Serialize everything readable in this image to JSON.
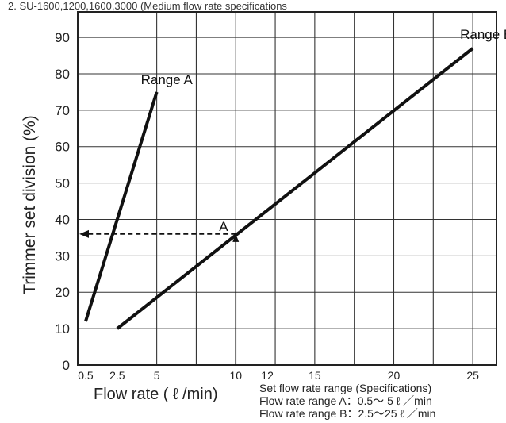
{
  "header_text": "2. SU-1600,1200,1600,3000 (Medium flow rate specifications",
  "chart_data": {
    "type": "line",
    "title": "",
    "xlabel": "Flow rate ( ℓ /min)",
    "ylabel": "Trimmer set division (%)",
    "x_ticks": [
      "0.5",
      "2.5",
      "5",
      "10",
      "12",
      "15",
      "20",
      "25"
    ],
    "y_ticks": [
      "0",
      "10",
      "20",
      "30",
      "40",
      "50",
      "60",
      "70",
      "80",
      "90"
    ],
    "xlim": [
      0,
      26.5
    ],
    "ylim": [
      0,
      97
    ],
    "grid": true,
    "series": [
      {
        "name": "Range A",
        "x": [
          0.5,
          5
        ],
        "y": [
          12,
          75
        ]
      },
      {
        "name": "Range B",
        "x": [
          2.5,
          25
        ],
        "y": [
          10,
          87
        ]
      }
    ],
    "annotations": [
      {
        "label": "A",
        "x": 10,
        "y": 36,
        "guide_to_y_axis": true,
        "guide_to_x_axis": true
      }
    ],
    "notes": [
      "Set flow rate range (Specifications)",
      "Flow rate range A：0.5～ 5 ℓ ／min",
      "Flow rate range B：2.5～25 ℓ ／min"
    ]
  }
}
